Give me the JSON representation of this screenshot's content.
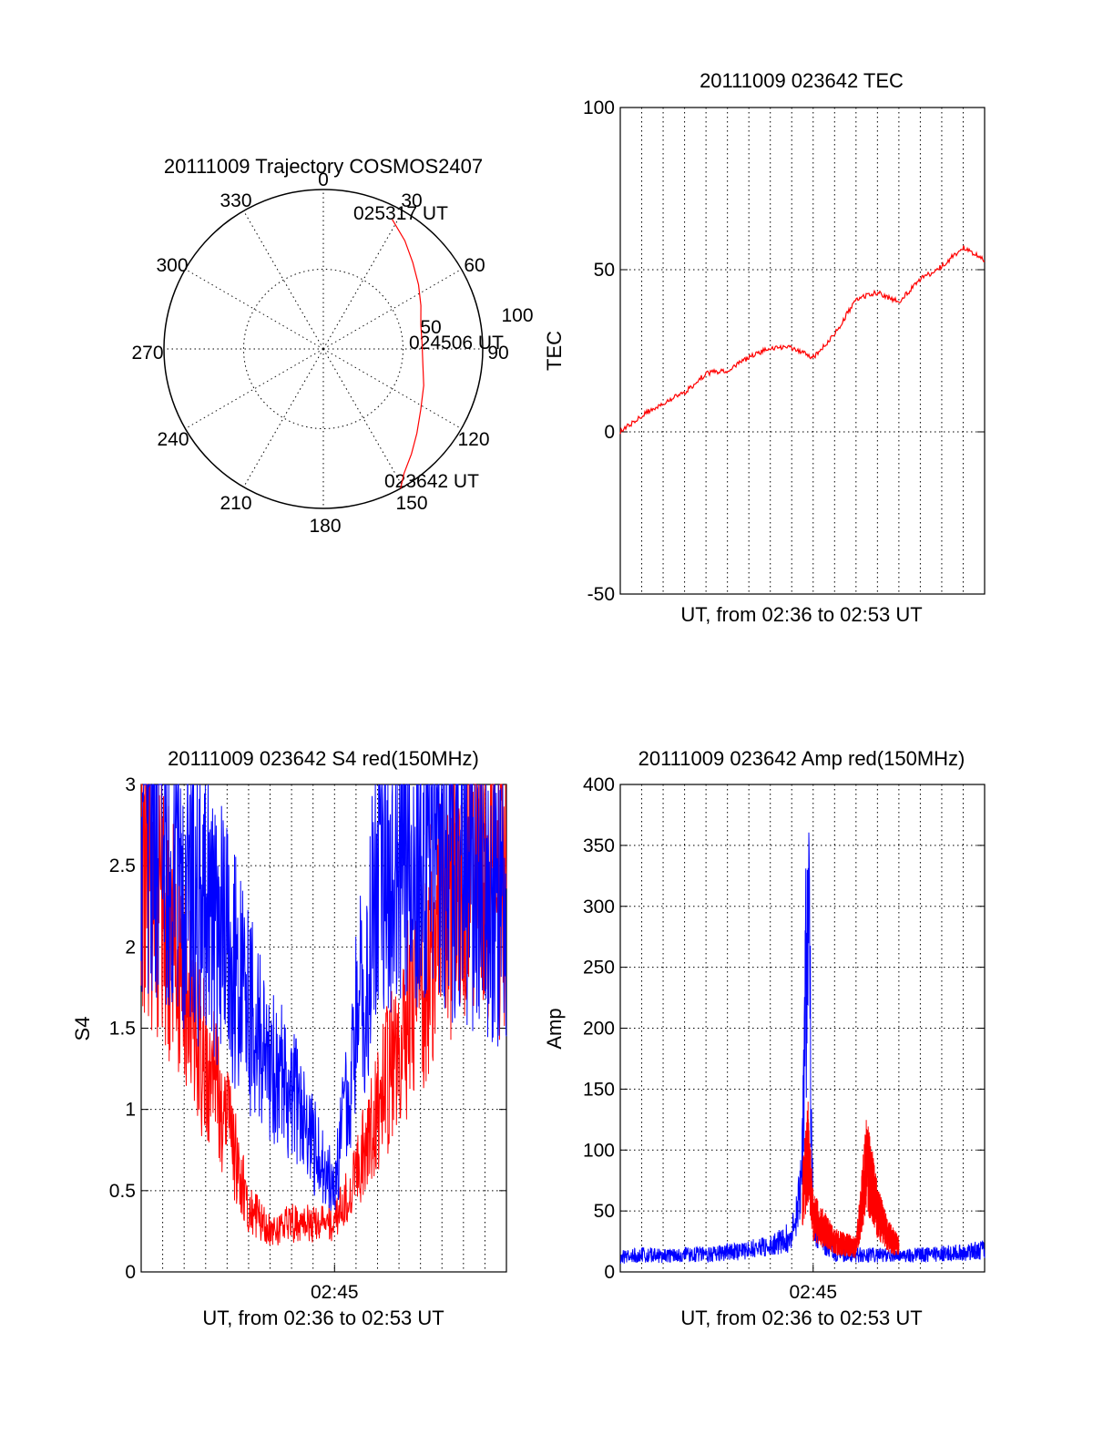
{
  "chart_data": [
    {
      "type": "polar",
      "title": "20111009 Trajectory COSMOS2407",
      "angle_labels": [
        "0",
        "30",
        "60",
        "90",
        "120",
        "150",
        "180",
        "210",
        "240",
        "270",
        "300",
        "330"
      ],
      "radius_labels": [
        "50",
        "100"
      ],
      "rlim": [
        0,
        100
      ],
      "grid": true,
      "series": [
        {
          "color": "#ff0000",
          "azimuth": [
            151,
            147,
            140,
            132,
            122,
            110,
            98,
            87,
            76,
            66,
            56,
            46,
            37,
            28
          ],
          "radius": [
            100,
            93,
            86,
            79,
            72,
            67,
            63,
            62,
            63,
            67,
            72,
            78,
            85,
            92
          ]
        }
      ],
      "annotations": [
        {
          "text": "025317 UT",
          "azimuth": 21,
          "radius": 103
        },
        {
          "text": "024506 UT",
          "azimuth": 88,
          "radius": 55
        },
        {
          "text": "023642 UT",
          "azimuth": 151,
          "radius": 103
        }
      ]
    },
    {
      "type": "line",
      "title": "20111009 023642 TEC",
      "xlabel": "UT, from 02:36 to 02:53 UT",
      "ylabel": "TEC",
      "ylim": [
        -50,
        100
      ],
      "yticks": [
        "-50",
        "0",
        "50",
        "100"
      ],
      "xlim": [
        "02:36",
        "02:53"
      ],
      "grid": true,
      "series": [
        {
          "color": "#ff0000",
          "x": [
            "02:36",
            "02:37",
            "02:38",
            "02:39",
            "02:40",
            "02:41",
            "02:42",
            "02:43",
            "02:44",
            "02:45",
            "02:46",
            "02:47",
            "02:48",
            "02:49",
            "02:50",
            "02:51",
            "02:52",
            "02:53"
          ],
          "y": [
            0,
            5,
            9,
            12,
            18,
            19,
            23,
            26,
            26,
            23,
            30,
            41,
            43,
            40,
            47,
            51,
            57,
            53
          ]
        }
      ]
    },
    {
      "type": "line",
      "title": "20111009 023642 S4 red(150MHz)",
      "xlabel": "UT, from 02:36 to 02:53 UT",
      "ylabel": "S4",
      "ylim": [
        0,
        3
      ],
      "yticks": [
        "0",
        "0.5",
        "1",
        "1.5",
        "2",
        "2.5",
        "3"
      ],
      "xtick_labels": [
        "02:45"
      ],
      "xlim": [
        "02:36",
        "02:53"
      ],
      "grid": true,
      "series": [
        {
          "color": "#ff0000",
          "x": [
            "02:36",
            "02:37",
            "02:38",
            "02:39",
            "02:40",
            "02:41",
            "02:42",
            "02:43",
            "02:44",
            "02:45",
            "02:46",
            "02:47",
            "02:48",
            "02:49",
            "02:50",
            "02:51",
            "02:52",
            "02:53"
          ],
          "y": [
            2.6,
            2.3,
            1.8,
            1.3,
            0.9,
            0.4,
            0.25,
            0.3,
            0.3,
            0.3,
            0.6,
            1.0,
            1.4,
            1.8,
            2.2,
            2.4,
            2.5,
            2.3
          ]
        },
        {
          "color": "#0000ff",
          "x": [
            "02:36",
            "02:37",
            "02:38",
            "02:39",
            "02:40",
            "02:41",
            "02:42",
            "02:43",
            "02:44",
            "02:45",
            "02:46",
            "02:47",
            "02:48",
            "02:49",
            "02:50",
            "02:51",
            "02:52",
            "02:53"
          ],
          "y": [
            2.8,
            2.6,
            2.4,
            2.2,
            2.0,
            1.6,
            1.3,
            1.1,
            0.8,
            0.5,
            1.5,
            2.3,
            2.6,
            2.7,
            2.6,
            2.5,
            2.3,
            2.2
          ]
        }
      ]
    },
    {
      "type": "line",
      "title": "20111009 023642 Amp red(150MHz)",
      "xlabel": "UT, from 02:36 to 02:53 UT",
      "ylabel": "Amp",
      "ylim": [
        0,
        400
      ],
      "yticks": [
        "0",
        "50",
        "100",
        "150",
        "200",
        "250",
        "300",
        "350",
        "400"
      ],
      "xtick_labels": [
        "02:45"
      ],
      "xlim": [
        "02:36",
        "02:53"
      ],
      "grid": true,
      "series": [
        {
          "color": "#0000ff",
          "x": [
            "02:36",
            "02:37",
            "02:38",
            "02:39",
            "02:40",
            "02:41",
            "02:42",
            "02:43",
            "02:44",
            "02:44:15",
            "02:44:30",
            "02:44:45",
            "02:45",
            "02:45:30",
            "02:46",
            "02:47",
            "02:48",
            "02:49",
            "02:50",
            "02:51",
            "02:52",
            "02:53"
          ],
          "y": [
            12,
            14,
            13,
            15,
            14,
            16,
            18,
            22,
            30,
            45,
            90,
            320,
            40,
            25,
            15,
            14,
            14,
            13,
            14,
            15,
            16,
            18
          ]
        },
        {
          "color": "#ff0000",
          "x": [
            "02:44:30",
            "02:44:45",
            "02:45",
            "02:45:30",
            "02:46",
            "02:47",
            "02:47:30",
            "02:48",
            "02:48:30",
            "02:49"
          ],
          "y": [
            60,
            100,
            45,
            35,
            25,
            20,
            90,
            50,
            30,
            20
          ]
        }
      ]
    }
  ]
}
